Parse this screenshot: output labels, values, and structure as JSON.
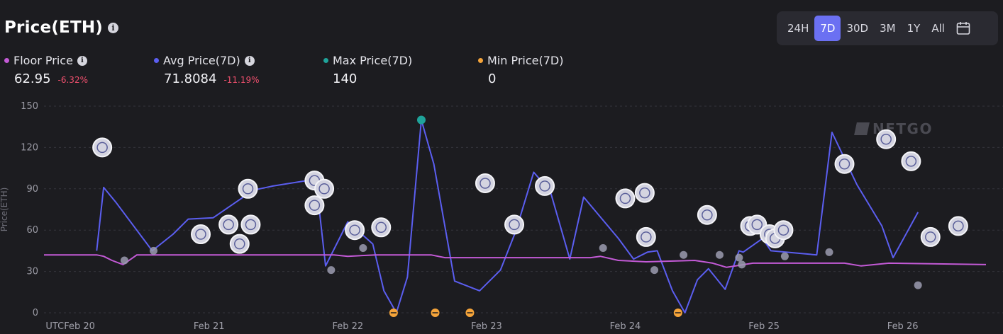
{
  "header": {
    "title": "Price(ETH)",
    "ranges": [
      "24H",
      "7D",
      "30D",
      "3M",
      "1Y",
      "All"
    ],
    "active_range": "7D"
  },
  "legend": {
    "floor": {
      "label": "Floor Price",
      "value": "62.95",
      "change": "-6.32%",
      "color": "#c35ad6"
    },
    "avg": {
      "label": "Avg Price(7D)",
      "value": "71.8084",
      "change": "-11.19%",
      "color": "#5b5ef0"
    },
    "max": {
      "label": "Max Price(7D)",
      "value": "140",
      "color": "#1fa39a"
    },
    "min": {
      "label": "Min Price(7D)",
      "value": "0",
      "color": "#f5a43a"
    }
  },
  "watermark": "NFTGO",
  "chart_data": {
    "type": "line",
    "ylabel": "Price(ETH)",
    "y_ticks": [
      0,
      30,
      60,
      90,
      120,
      150
    ],
    "ylim": [
      0,
      150
    ],
    "x_tick_labels": [
      "UTCFeb 20",
      "Feb 21",
      "Feb 22",
      "Feb 23",
      "Feb 24",
      "Feb 25",
      "Feb 26"
    ],
    "xlim": [
      -0.19,
      6.6
    ],
    "series": [
      {
        "name": "Avg Price(7D)",
        "color": "#5b5ef0",
        "points": [
          [
            0.19,
            45
          ],
          [
            0.24,
            91
          ],
          [
            0.33,
            80
          ],
          [
            0.59,
            45
          ],
          [
            0.74,
            57
          ],
          [
            0.85,
            68
          ],
          [
            1.03,
            69
          ],
          [
            1.32,
            89
          ],
          [
            1.46,
            92
          ],
          [
            1.77,
            97
          ],
          [
            1.84,
            34
          ],
          [
            2.0,
            66
          ],
          [
            2.18,
            50
          ],
          [
            2.26,
            16
          ],
          [
            2.35,
            0
          ],
          [
            2.43,
            26
          ],
          [
            2.53,
            140
          ],
          [
            2.62,
            108
          ],
          [
            2.77,
            23
          ],
          [
            2.95,
            16
          ],
          [
            3.1,
            31
          ],
          [
            3.21,
            59
          ],
          [
            3.34,
            102
          ],
          [
            3.46,
            88
          ],
          [
            3.6,
            39
          ],
          [
            3.7,
            84
          ],
          [
            3.95,
            54
          ],
          [
            4.06,
            39
          ],
          [
            4.16,
            44
          ],
          [
            4.23,
            45
          ],
          [
            4.34,
            16
          ],
          [
            4.43,
            0
          ],
          [
            4.52,
            24
          ],
          [
            4.6,
            32
          ],
          [
            4.72,
            17
          ],
          [
            4.82,
            45
          ],
          [
            4.85,
            44
          ],
          [
            4.99,
            54
          ],
          [
            5.05,
            45
          ],
          [
            5.38,
            42
          ],
          [
            5.49,
            131
          ],
          [
            5.67,
            93
          ],
          [
            5.85,
            63
          ],
          [
            5.93,
            40
          ],
          [
            6.11,
            73
          ]
        ]
      },
      {
        "name": "Floor Price",
        "color": "#c35ad6",
        "points": [
          [
            -0.19,
            42
          ],
          [
            0.19,
            42
          ],
          [
            0.24,
            41
          ],
          [
            0.3,
            38
          ],
          [
            0.38,
            35
          ],
          [
            0.48,
            42
          ],
          [
            1.9,
            42
          ],
          [
            2.0,
            41
          ],
          [
            2.2,
            42
          ],
          [
            2.43,
            42
          ],
          [
            2.6,
            42
          ],
          [
            2.7,
            40
          ],
          [
            3.75,
            40
          ],
          [
            3.82,
            41
          ],
          [
            3.95,
            38
          ],
          [
            4.15,
            37
          ],
          [
            4.5,
            38
          ],
          [
            4.63,
            36
          ],
          [
            4.73,
            33
          ],
          [
            4.92,
            36
          ],
          [
            5.58,
            36
          ],
          [
            5.7,
            34
          ],
          [
            5.9,
            36
          ],
          [
            6.6,
            35
          ]
        ]
      }
    ],
    "sales": [
      [
        0.23,
        120
      ],
      [
        1.28,
        90
      ],
      [
        1.22,
        50
      ],
      [
        0.39,
        38
      ],
      [
        0.6,
        45
      ],
      [
        0.94,
        57
      ],
      [
        1.14,
        64
      ],
      [
        1.3,
        64
      ],
      [
        1.76,
        96
      ],
      [
        1.83,
        90
      ],
      [
        1.76,
        78
      ],
      [
        1.88,
        31
      ],
      [
        2.05,
        60
      ],
      [
        2.11,
        47
      ],
      [
        2.24,
        62
      ],
      [
        2.99,
        94
      ],
      [
        3.2,
        64
      ],
      [
        3.42,
        92
      ],
      [
        3.84,
        47
      ],
      [
        4.0,
        83
      ],
      [
        4.14,
        87
      ],
      [
        4.15,
        55
      ],
      [
        4.21,
        31
      ],
      [
        4.42,
        42
      ],
      [
        4.59,
        71
      ],
      [
        4.68,
        42
      ],
      [
        4.82,
        40
      ],
      [
        4.84,
        35
      ],
      [
        4.9,
        63
      ],
      [
        4.95,
        64
      ],
      [
        5.04,
        57
      ],
      [
        5.08,
        54
      ],
      [
        5.14,
        60
      ],
      [
        5.15,
        41
      ],
      [
        5.47,
        44
      ],
      [
        5.58,
        108
      ],
      [
        5.88,
        126
      ],
      [
        6.06,
        110
      ],
      [
        6.11,
        20
      ],
      [
        6.2,
        55
      ],
      [
        6.4,
        63
      ]
    ],
    "max_point": [
      2.53,
      140
    ],
    "min_points": [
      [
        2.33,
        0
      ],
      [
        2.63,
        0
      ],
      [
        2.88,
        0
      ],
      [
        4.38,
        0
      ]
    ]
  }
}
